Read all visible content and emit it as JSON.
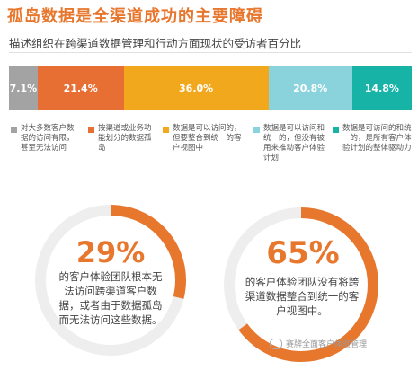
{
  "title": "孤岛数据是全渠道成功的主要障碍",
  "subtitle": "描述组织在跨渠道数据管理和行动方面现状的受访者百分比",
  "chart_data": {
    "type": "bar",
    "orientation": "stacked-horizontal",
    "categories": [
      "对大多数客户数据的访问有限，甚至无法访问",
      "按渠道或业务功能划分的数据孤岛",
      "数据是可以访问的，但要整合到统一的客户视图中",
      "数据是可以访问和统一的，但没有被用来推动客户体验计划",
      "数据是可访问的和统一的，是所有客户体验计划的整体驱动力"
    ],
    "values": [
      7.1,
      21.4,
      36.0,
      20.8,
      14.8
    ],
    "value_labels": [
      "7.1%",
      "21.4%",
      "36.0%",
      "20.8%",
      "14.8%"
    ],
    "colors": [
      "#a3a3a3",
      "#e86f33",
      "#f2a81d",
      "#8ad3dd",
      "#17b3a6"
    ]
  },
  "stats": [
    {
      "value": 29,
      "label": "29%",
      "text": "的客户体验团队根本无法访问跨渠道客户数据，或者由于数据孤岛而无法访问这些数据。"
    },
    {
      "value": 65,
      "label": "65%",
      "text": "的客户体验团队没有将跨渠道数据整合到统一的客户视图中。"
    }
  ],
  "watermark": "赛牌全面客户体验管理",
  "colors": {
    "accent": "#e8772e",
    "ring_track": "#eeeeee"
  }
}
